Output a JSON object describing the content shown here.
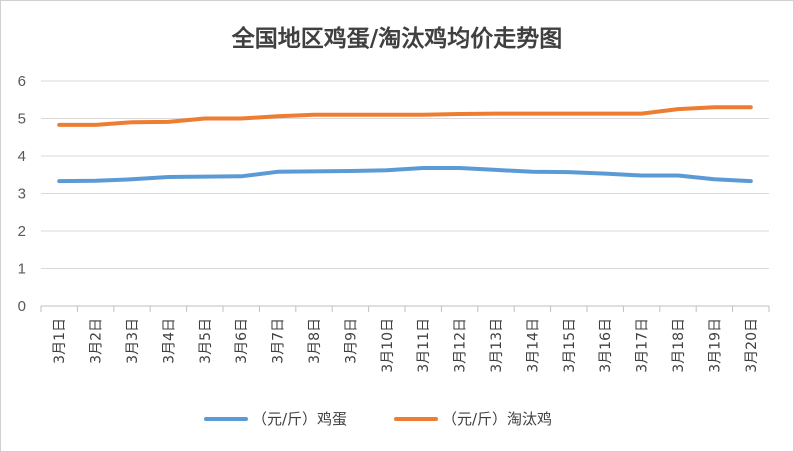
{
  "chart_data": {
    "type": "line",
    "title": "全国地区鸡蛋/淘汰鸡均价走势图",
    "categories": [
      "3月1日",
      "3月2日",
      "3月3日",
      "3月4日",
      "3月5日",
      "3月6日",
      "3月7日",
      "3月8日",
      "3月9日",
      "3月10日",
      "3月11日",
      "3月12日",
      "3月13日",
      "3月14日",
      "3月15日",
      "3月16日",
      "3月17日",
      "3月18日",
      "3月19日",
      "3月20日"
    ],
    "ylim": [
      0,
      6
    ],
    "yticks": [
      "0",
      "1",
      "2",
      "3",
      "4",
      "5",
      "6"
    ],
    "grid": true,
    "legend_position": "bottom",
    "series": [
      {
        "name": "（元/斤）鸡蛋",
        "color": "#5b9bd5",
        "values": [
          3.33,
          3.34,
          3.38,
          3.44,
          3.45,
          3.46,
          3.58,
          3.59,
          3.6,
          3.62,
          3.68,
          3.68,
          3.63,
          3.58,
          3.57,
          3.53,
          3.48,
          3.48,
          3.38,
          3.33
        ]
      },
      {
        "name": "（元/斤）淘汰鸡",
        "color": "#ed7d31",
        "values": [
          4.83,
          4.83,
          4.9,
          4.91,
          5.0,
          5.0,
          5.06,
          5.1,
          5.1,
          5.1,
          5.1,
          5.12,
          5.13,
          5.13,
          5.13,
          5.13,
          5.13,
          5.25,
          5.3,
          5.3
        ]
      }
    ]
  }
}
